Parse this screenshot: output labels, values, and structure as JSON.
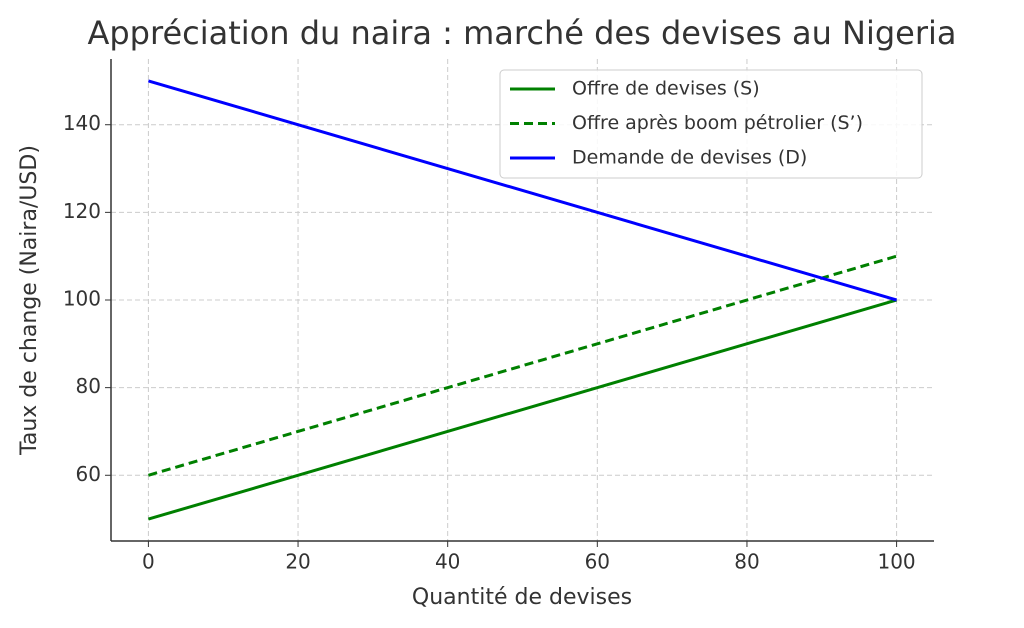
{
  "chart_data": {
    "type": "line",
    "title": "Appréciation du naira : marché des devises au Nigeria",
    "xlabel": "Quantité de devises",
    "ylabel": "Taux de change (Naira/USD)",
    "x": [
      0,
      100
    ],
    "series": [
      {
        "name": "Offre de devises (S)",
        "color": "#008000",
        "linestyle": "solid",
        "values": [
          50,
          100
        ]
      },
      {
        "name": "Offre après boom pétrolier (S’)",
        "color": "#008000",
        "linestyle": "dashed",
        "values": [
          60,
          110
        ]
      },
      {
        "name": "Demande de devises (D)",
        "color": "#0000ff",
        "linestyle": "solid",
        "values": [
          150,
          100
        ]
      }
    ],
    "xlim": [
      -5,
      105
    ],
    "ylim": [
      45,
      155
    ],
    "xticks": [
      0,
      20,
      40,
      60,
      80,
      100
    ],
    "yticks": [
      60,
      80,
      100,
      120,
      140
    ],
    "grid": true,
    "legend": "upper right"
  }
}
